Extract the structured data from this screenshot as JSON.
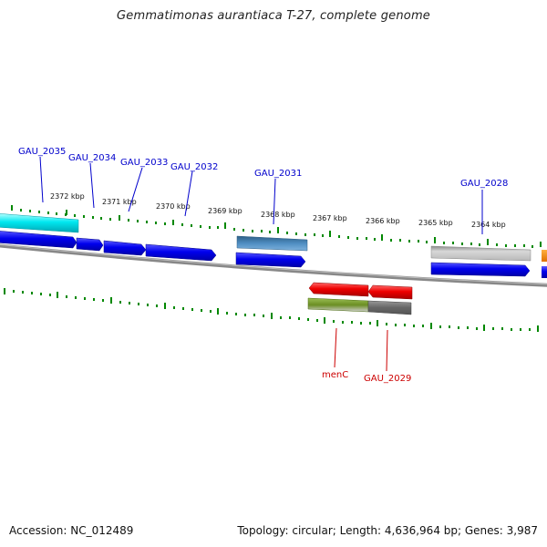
{
  "title": "Gemmatimonas aurantiaca T-27, complete genome",
  "footer": {
    "accession": "Accession: NC_012489",
    "summary": "Topology: circular; Length: 4,636,964 bp; Genes: 3,987"
  },
  "colors": {
    "background": "#ffffff",
    "plus_label": "#0000cc",
    "minus_label": "#cc0000",
    "tick": "#008000",
    "backbone": "#777777",
    "cds": "#0000ee",
    "rna_cyan": "#00e5ee",
    "steel": "#4682b4",
    "grey": "#bbbbbb",
    "red": "#ee0000",
    "olive": "#6b8e23",
    "dark_grey": "#666666",
    "orange": "#ff8c00"
  },
  "scale": {
    "unit": "kbp",
    "labels": [
      "2372 kbp",
      "2371 kbp",
      "2370 kbp",
      "2369 kbp",
      "2368 kbp",
      "2367 kbp",
      "2366 kbp",
      "2365 kbp",
      "2364 kbp"
    ]
  },
  "features": {
    "plus": [
      {
        "label": "GAU_2035",
        "color": "cyan"
      },
      {
        "label": "GAU_2034",
        "color": "blue"
      },
      {
        "label": "GAU_2033",
        "color": "blue"
      },
      {
        "label": "GAU_2032",
        "color": "blue"
      },
      {
        "label": "GAU_2031",
        "color": "blue"
      },
      {
        "label": "GAU_2028",
        "color": "blue"
      }
    ],
    "minus": [
      {
        "label": "menC",
        "color": "red"
      },
      {
        "label": "GAU_2029",
        "color": "red"
      }
    ]
  }
}
